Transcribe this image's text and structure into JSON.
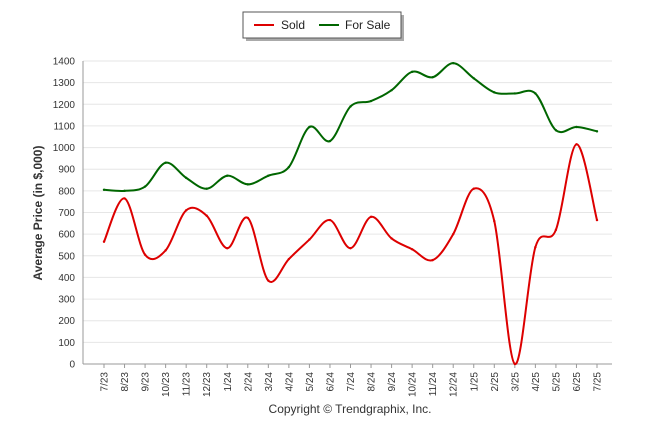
{
  "chart_data": {
    "type": "line",
    "ylabel": "Average Price (in $,000)",
    "ylim": [
      0,
      1400
    ],
    "yticks": [
      "0",
      "100",
      "200",
      "300",
      "400",
      "500",
      "600",
      "700",
      "800",
      "900",
      "1000",
      "1100",
      "1200",
      "1300",
      "1400"
    ],
    "categories": [
      "7/23",
      "8/23",
      "9/23",
      "10/23",
      "11/23",
      "12/23",
      "1/24",
      "2/24",
      "3/24",
      "4/24",
      "5/24",
      "6/24",
      "7/24",
      "8/24",
      "9/24",
      "10/24",
      "11/24",
      "12/24",
      "1/25",
      "2/25",
      "3/25",
      "4/25",
      "5/25",
      "6/25",
      "7/25"
    ],
    "series": [
      {
        "name": "Sold",
        "color": "#dd0000",
        "values": [
          565,
          765,
          505,
          525,
          710,
          685,
          535,
          675,
          385,
          485,
          575,
          665,
          535,
          680,
          580,
          530,
          480,
          600,
          810,
          660,
          0,
          540,
          620,
          1015,
          665
        ]
      },
      {
        "name": "For Sale",
        "color": "#006600",
        "values": [
          805,
          800,
          820,
          930,
          860,
          810,
          870,
          830,
          870,
          910,
          1095,
          1030,
          1190,
          1215,
          1265,
          1350,
          1325,
          1390,
          1320,
          1255,
          1250,
          1250,
          1080,
          1095,
          1075
        ]
      }
    ],
    "grid": true,
    "legend": "top-center"
  },
  "footer": {
    "credit": "Copyright © Trendgraphix, Inc."
  }
}
